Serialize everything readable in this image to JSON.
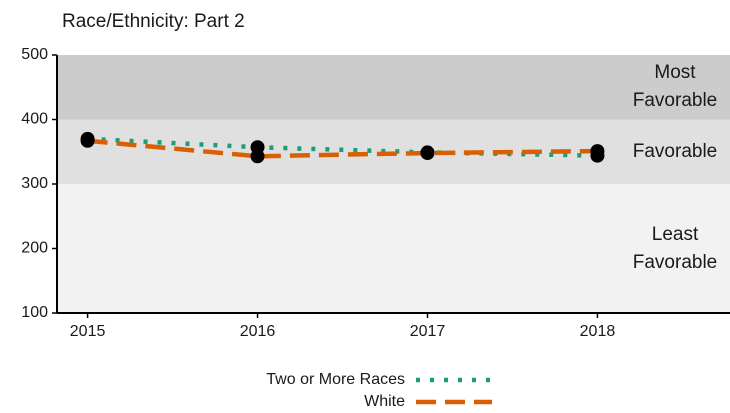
{
  "chart_data": {
    "type": "line",
    "title": "Race/Ethnicity: Part 2",
    "x": [
      2015,
      2016,
      2017,
      2018
    ],
    "series": [
      {
        "name": "Two or More Races",
        "color": "#1b9e77",
        "dash": "dotted",
        "values": [
          370,
          357,
          349,
          344
        ]
      },
      {
        "name": "White",
        "color": "#d95f02",
        "dash": "dashed",
        "values": [
          367,
          343,
          348,
          351
        ]
      }
    ],
    "marker_color": "#000000",
    "xlim": [
      2014.82,
      2018.78
    ],
    "xticks": [
      2015,
      2016,
      2017,
      2018
    ],
    "ylim": [
      100,
      500
    ],
    "yticks": [
      100,
      200,
      300,
      400,
      500
    ],
    "bands": [
      {
        "label": "Most Favorable",
        "from": 400,
        "to": 500,
        "color": "#cccccc"
      },
      {
        "label": "Favorable",
        "from": 300,
        "to": 400,
        "color": "#e0e0e0"
      },
      {
        "label": "Least Favorable",
        "from": 100,
        "to": 300,
        "color": "#f2f2f2"
      }
    ],
    "legend": "bottom"
  }
}
